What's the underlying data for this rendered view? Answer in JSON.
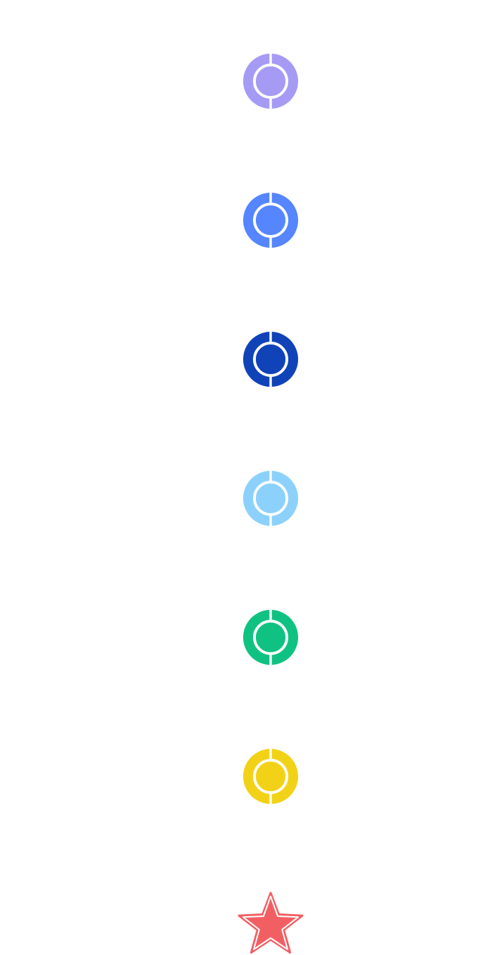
{
  "markers": [
    {
      "icon": "ring-marker-icon",
      "color": "#a59bf5"
    },
    {
      "icon": "ring-marker-icon",
      "color": "#5585ff"
    },
    {
      "icon": "ring-marker-icon",
      "color": "#1143b8"
    },
    {
      "icon": "ring-marker-icon",
      "color": "#8bd1fb"
    },
    {
      "icon": "ring-marker-icon",
      "color": "#10c281"
    },
    {
      "icon": "ring-marker-icon",
      "color": "#f2d216"
    }
  ],
  "star": {
    "icon": "star-icon",
    "color": "#f25f63"
  }
}
